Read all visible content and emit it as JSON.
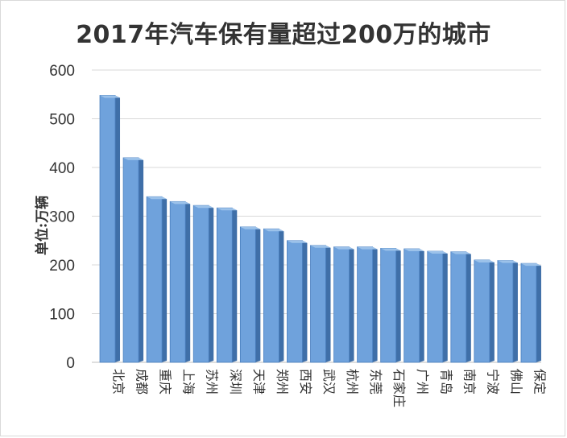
{
  "chart_data": {
    "type": "bar",
    "title": "2017年汽车保有量超过200万的城市",
    "xlabel": "",
    "ylabel": "单位:万辆",
    "ylim": [
      0,
      600
    ],
    "yticks": [
      0,
      100,
      200,
      300,
      400,
      500,
      600
    ],
    "grid": true,
    "legend": "none",
    "categories": [
      "北京",
      "成都",
      "重庆",
      "上海",
      "苏州",
      "深圳",
      "天津",
      "郑州",
      "西安",
      "武汉",
      "杭州",
      "东莞",
      "石家庄",
      "广州",
      "青岛",
      "南京",
      "宁波",
      "佛山",
      "保定"
    ],
    "series": [
      {
        "values": [
          548,
          420,
          340,
          330,
          322,
          317,
          278,
          274,
          250,
          240,
          237,
          237,
          234,
          233,
          228,
          227,
          210,
          209,
          203
        ]
      }
    ],
    "colors": {
      "bar": "#6fa2dc",
      "bar_side": "#3f6fa8",
      "bar_top": "#9cc2ea",
      "grid": "#d9d9d9",
      "text": "#333333"
    }
  }
}
